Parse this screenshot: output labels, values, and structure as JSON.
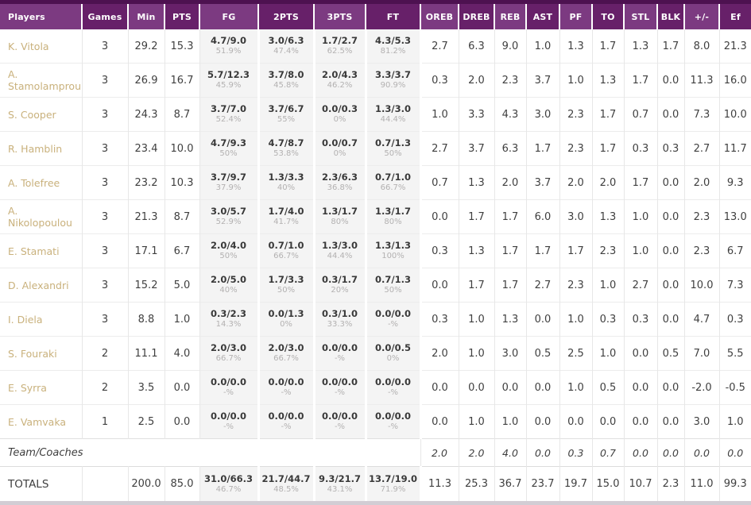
{
  "colors": {
    "top_strip": "#4d1150",
    "header_light": "#7c3a81",
    "header_dark": "#672069",
    "player_link": "#c9b17c",
    "shoot_column_bg": "#f4f4f4",
    "bottom_bar": "#d2cdd4"
  },
  "table": {
    "columns": [
      {
        "key": "player",
        "label": "Players"
      },
      {
        "key": "games",
        "label": "Games"
      },
      {
        "key": "min",
        "label": "Min"
      },
      {
        "key": "pts",
        "label": "PTS"
      },
      {
        "key": "fg",
        "label": "FG"
      },
      {
        "key": "p2",
        "label": "2PTS"
      },
      {
        "key": "p3",
        "label": "3PTS"
      },
      {
        "key": "ft",
        "label": "FT"
      },
      {
        "key": "oreb",
        "label": "OREB"
      },
      {
        "key": "dreb",
        "label": "DREB"
      },
      {
        "key": "reb",
        "label": "REB"
      },
      {
        "key": "ast",
        "label": "AST"
      },
      {
        "key": "pf",
        "label": "PF"
      },
      {
        "key": "to",
        "label": "TO"
      },
      {
        "key": "stl",
        "label": "STL"
      },
      {
        "key": "blk",
        "label": "BLK"
      },
      {
        "key": "pm",
        "label": "+/-"
      },
      {
        "key": "ef",
        "label": "Ef"
      }
    ],
    "rows": [
      {
        "player": "K. Vitola",
        "games": "3",
        "min": "29.2",
        "pts": "15.3",
        "fg": [
          "4.7/9.0",
          "51.9%"
        ],
        "p2": [
          "3.0/6.3",
          "47.4%"
        ],
        "p3": [
          "1.7/2.7",
          "62.5%"
        ],
        "ft": [
          "4.3/5.3",
          "81.2%"
        ],
        "oreb": "2.7",
        "dreb": "6.3",
        "reb": "9.0",
        "ast": "1.0",
        "pf": "1.3",
        "to": "1.7",
        "stl": "1.3",
        "blk": "1.7",
        "pm": "8.0",
        "ef": "21.3"
      },
      {
        "player": "A. Stamolamprou",
        "games": "3",
        "min": "26.9",
        "pts": "16.7",
        "fg": [
          "5.7/12.3",
          "45.9%"
        ],
        "p2": [
          "3.7/8.0",
          "45.8%"
        ],
        "p3": [
          "2.0/4.3",
          "46.2%"
        ],
        "ft": [
          "3.3/3.7",
          "90.9%"
        ],
        "oreb": "0.3",
        "dreb": "2.0",
        "reb": "2.3",
        "ast": "3.7",
        "pf": "1.0",
        "to": "1.3",
        "stl": "1.7",
        "blk": "0.0",
        "pm": "11.3",
        "ef": "16.0"
      },
      {
        "player": "S. Cooper",
        "games": "3",
        "min": "24.3",
        "pts": "8.7",
        "fg": [
          "3.7/7.0",
          "52.4%"
        ],
        "p2": [
          "3.7/6.7",
          "55%"
        ],
        "p3": [
          "0.0/0.3",
          "0%"
        ],
        "ft": [
          "1.3/3.0",
          "44.4%"
        ],
        "oreb": "1.0",
        "dreb": "3.3",
        "reb": "4.3",
        "ast": "3.0",
        "pf": "2.3",
        "to": "1.7",
        "stl": "0.7",
        "blk": "0.0",
        "pm": "7.3",
        "ef": "10.0"
      },
      {
        "player": "R. Hamblin",
        "games": "3",
        "min": "23.4",
        "pts": "10.0",
        "fg": [
          "4.7/9.3",
          "50%"
        ],
        "p2": [
          "4.7/8.7",
          "53.8%"
        ],
        "p3": [
          "0.0/0.7",
          "0%"
        ],
        "ft": [
          "0.7/1.3",
          "50%"
        ],
        "oreb": "2.7",
        "dreb": "3.7",
        "reb": "6.3",
        "ast": "1.7",
        "pf": "2.3",
        "to": "1.7",
        "stl": "0.3",
        "blk": "0.3",
        "pm": "2.7",
        "ef": "11.7"
      },
      {
        "player": "A. Tolefree",
        "games": "3",
        "min": "23.2",
        "pts": "10.3",
        "fg": [
          "3.7/9.7",
          "37.9%"
        ],
        "p2": [
          "1.3/3.3",
          "40%"
        ],
        "p3": [
          "2.3/6.3",
          "36.8%"
        ],
        "ft": [
          "0.7/1.0",
          "66.7%"
        ],
        "oreb": "0.7",
        "dreb": "1.3",
        "reb": "2.0",
        "ast": "3.7",
        "pf": "2.0",
        "to": "2.0",
        "stl": "1.7",
        "blk": "0.0",
        "pm": "2.0",
        "ef": "9.3"
      },
      {
        "player": "A. Nikolopoulou",
        "games": "3",
        "min": "21.3",
        "pts": "8.7",
        "fg": [
          "3.0/5.7",
          "52.9%"
        ],
        "p2": [
          "1.7/4.0",
          "41.7%"
        ],
        "p3": [
          "1.3/1.7",
          "80%"
        ],
        "ft": [
          "1.3/1.7",
          "80%"
        ],
        "oreb": "0.0",
        "dreb": "1.7",
        "reb": "1.7",
        "ast": "6.0",
        "pf": "3.0",
        "to": "1.3",
        "stl": "1.0",
        "blk": "0.0",
        "pm": "2.3",
        "ef": "13.0"
      },
      {
        "player": "E. Stamati",
        "games": "3",
        "min": "17.1",
        "pts": "6.7",
        "fg": [
          "2.0/4.0",
          "50%"
        ],
        "p2": [
          "0.7/1.0",
          "66.7%"
        ],
        "p3": [
          "1.3/3.0",
          "44.4%"
        ],
        "ft": [
          "1.3/1.3",
          "100%"
        ],
        "oreb": "0.3",
        "dreb": "1.3",
        "reb": "1.7",
        "ast": "1.7",
        "pf": "1.7",
        "to": "2.3",
        "stl": "1.0",
        "blk": "0.0",
        "pm": "2.3",
        "ef": "6.7"
      },
      {
        "player": "D. Alexandri",
        "games": "3",
        "min": "15.2",
        "pts": "5.0",
        "fg": [
          "2.0/5.0",
          "40%"
        ],
        "p2": [
          "1.7/3.3",
          "50%"
        ],
        "p3": [
          "0.3/1.7",
          "20%"
        ],
        "ft": [
          "0.7/1.3",
          "50%"
        ],
        "oreb": "0.0",
        "dreb": "1.7",
        "reb": "1.7",
        "ast": "2.7",
        "pf": "2.3",
        "to": "1.0",
        "stl": "2.7",
        "blk": "0.0",
        "pm": "10.0",
        "ef": "7.3"
      },
      {
        "player": "I. Diela",
        "games": "3",
        "min": "8.8",
        "pts": "1.0",
        "fg": [
          "0.3/2.3",
          "14.3%"
        ],
        "p2": [
          "0.0/1.3",
          "0%"
        ],
        "p3": [
          "0.3/1.0",
          "33.3%"
        ],
        "ft": [
          "0.0/0.0",
          "-%"
        ],
        "oreb": "0.3",
        "dreb": "1.0",
        "reb": "1.3",
        "ast": "0.0",
        "pf": "1.0",
        "to": "0.3",
        "stl": "0.3",
        "blk": "0.0",
        "pm": "4.7",
        "ef": "0.3"
      },
      {
        "player": "S. Fouraki",
        "games": "2",
        "min": "11.1",
        "pts": "4.0",
        "fg": [
          "2.0/3.0",
          "66.7%"
        ],
        "p2": [
          "2.0/3.0",
          "66.7%"
        ],
        "p3": [
          "0.0/0.0",
          "-%"
        ],
        "ft": [
          "0.0/0.5",
          "0%"
        ],
        "oreb": "2.0",
        "dreb": "1.0",
        "reb": "3.0",
        "ast": "0.5",
        "pf": "2.5",
        "to": "1.0",
        "stl": "0.0",
        "blk": "0.5",
        "pm": "7.0",
        "ef": "5.5"
      },
      {
        "player": "E. Syrra",
        "games": "2",
        "min": "3.5",
        "pts": "0.0",
        "fg": [
          "0.0/0.0",
          "-%"
        ],
        "p2": [
          "0.0/0.0",
          "-%"
        ],
        "p3": [
          "0.0/0.0",
          "-%"
        ],
        "ft": [
          "0.0/0.0",
          "-%"
        ],
        "oreb": "0.0",
        "dreb": "0.0",
        "reb": "0.0",
        "ast": "0.0",
        "pf": "1.0",
        "to": "0.5",
        "stl": "0.0",
        "blk": "0.0",
        "pm": "-2.0",
        "ef": "-0.5"
      },
      {
        "player": "E. Vamvaka",
        "games": "1",
        "min": "2.5",
        "pts": "0.0",
        "fg": [
          "0.0/0.0",
          "-%"
        ],
        "p2": [
          "0.0/0.0",
          "-%"
        ],
        "p3": [
          "0.0/0.0",
          "-%"
        ],
        "ft": [
          "0.0/0.0",
          "-%"
        ],
        "oreb": "0.0",
        "dreb": "1.0",
        "reb": "1.0",
        "ast": "0.0",
        "pf": "0.0",
        "to": "0.0",
        "stl": "0.0",
        "blk": "0.0",
        "pm": "3.0",
        "ef": "1.0"
      }
    ],
    "team_row": {
      "label": "Team/Coaches",
      "oreb": "2.0",
      "dreb": "2.0",
      "reb": "4.0",
      "ast": "0.0",
      "pf": "0.3",
      "to": "0.7",
      "stl": "0.0",
      "blk": "0.0",
      "pm": "0.0",
      "ef": "0.0"
    },
    "totals_row": {
      "label": "TOTALS",
      "games": "",
      "min": "200.0",
      "pts": "85.0",
      "fg": [
        "31.0/66.3",
        "46.7%"
      ],
      "p2": [
        "21.7/44.7",
        "48.5%"
      ],
      "p3": [
        "9.3/21.7",
        "43.1%"
      ],
      "ft": [
        "13.7/19.0",
        "71.9%"
      ],
      "oreb": "11.3",
      "dreb": "25.3",
      "reb": "36.7",
      "ast": "23.7",
      "pf": "19.7",
      "to": "15.0",
      "stl": "10.7",
      "blk": "2.3",
      "pm": "11.0",
      "ef": "99.3"
    }
  }
}
